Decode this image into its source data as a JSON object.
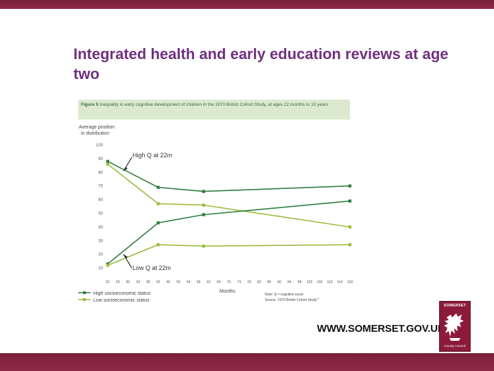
{
  "slide": {
    "title": "Integrated health and early education reviews at age two",
    "url": "WWW.SOMERSET.GOV.UK"
  },
  "logo": {
    "top_text": "SOMERSET",
    "bottom_text": "County Council"
  },
  "colors": {
    "brand": "#8c1b3b",
    "title": "#70307f",
    "high_ses": "#2e7d3e",
    "low_ses": "#9bbb3c",
    "figure_header_bg": "#dbe9cf"
  },
  "figure": {
    "header_bold": "Figure 5",
    "header_text": "Inequality in early cognitive development of children in the 1970 British Cohort Study, at ages 22 months to 10 years",
    "ylabel_line1": "Average position",
    "ylabel_line2": "in distribution",
    "xlabel": "Months",
    "annotation_high": "High Q at 22m",
    "annotation_low": "Low Q at 22m",
    "note": "Note: Q = cognitive score",
    "source": "Source: 1970 British Cohort Study",
    "source_ref": "17"
  },
  "chart_data": {
    "type": "line",
    "x": [
      22,
      42,
      60,
      118
    ],
    "xticks": [
      22,
      26,
      30,
      34,
      38,
      42,
      46,
      50,
      54,
      58,
      62,
      66,
      70,
      74,
      78,
      82,
      86,
      90,
      94,
      98,
      102,
      106,
      110,
      114,
      118
    ],
    "yticks": [
      10,
      20,
      30,
      40,
      50,
      60,
      70,
      80,
      90,
      100
    ],
    "xlim": [
      22,
      118
    ],
    "ylim": [
      5,
      100
    ],
    "xlabel": "Months",
    "ylabel": "Average position in distribution",
    "legend_position": "bottom-left",
    "grid": false,
    "series": [
      {
        "name": "High socioeconomic status",
        "group": "High Q at 22m",
        "color": "#2e7d3e",
        "values": [
          88,
          69,
          66,
          70
        ]
      },
      {
        "name": "Low socioeconomic status",
        "group": "High Q at 22m",
        "color": "#9bbb3c",
        "values": [
          86,
          57,
          56,
          40
        ]
      },
      {
        "name": "High socioeconomic status",
        "group": "Low Q at 22m",
        "color": "#2e7d3e",
        "values": [
          13,
          43,
          49,
          59
        ]
      },
      {
        "name": "Low socioeconomic status",
        "group": "Low Q at 22m",
        "color": "#9bbb3c",
        "values": [
          12,
          27,
          26,
          27
        ]
      }
    ],
    "legend": [
      {
        "label": "High socioeconomic status",
        "color": "#2e7d3e"
      },
      {
        "label": "Low socioeconomic status",
        "color": "#9bbb3c"
      }
    ]
  }
}
